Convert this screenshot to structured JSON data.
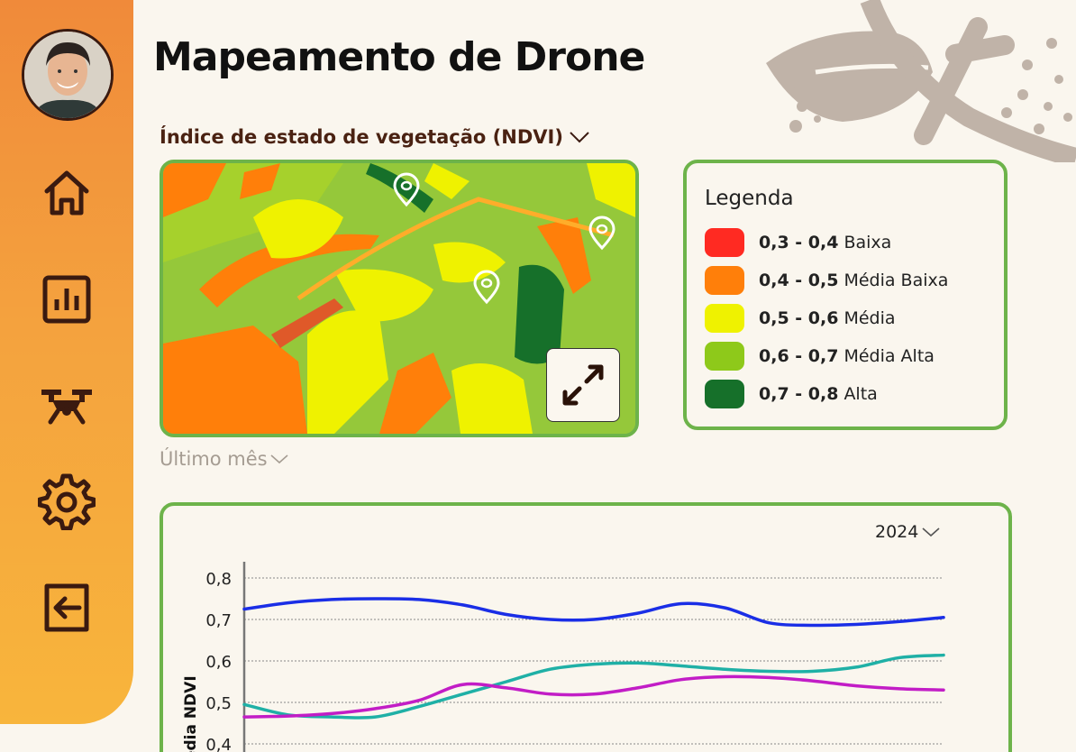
{
  "app": {
    "title": "Mapeamento de Drone"
  },
  "sidebar": {
    "items": [
      {
        "icon": "home-icon"
      },
      {
        "icon": "bar-chart-icon"
      },
      {
        "icon": "drone-icon"
      },
      {
        "icon": "gear-icon"
      },
      {
        "icon": "logout-icon"
      }
    ],
    "accent": "#f4a23e"
  },
  "map": {
    "index_label": "Índice de estado de vegetação (NDVI)",
    "period_label": "Último mês",
    "border_color": "#6db34a"
  },
  "legend": {
    "title": "Legenda",
    "items": [
      {
        "range": "0,3 - 0,4",
        "label": "Baixa",
        "color": "#ff2a22"
      },
      {
        "range": "0,4 - 0,5",
        "label": "Média Baixa",
        "color": "#ff7f0a"
      },
      {
        "range": "0,5 - 0,6",
        "label": "Média",
        "color": "#eff200"
      },
      {
        "range": "0,6 - 0,7",
        "label": "Média Alta",
        "color": "#8ec91a"
      },
      {
        "range": "0,7 - 0,8",
        "label": "Alta",
        "color": "#16702a"
      }
    ]
  },
  "chart": {
    "year_label": "2024"
  },
  "chart_data": {
    "type": "line",
    "ylabel": "Média NDVI",
    "yticks": [
      "0,8",
      "0,7",
      "0,6",
      "0,5",
      "0,4"
    ],
    "ylim": [
      0.4,
      0.8
    ],
    "grid": true,
    "x": [
      0,
      1,
      2,
      3,
      4,
      5,
      6,
      7,
      8,
      9,
      10,
      11,
      12,
      13,
      14,
      15,
      16
    ],
    "series": [
      {
        "color": "#1a2ee6",
        "values": [
          0.725,
          0.74,
          0.748,
          0.75,
          0.748,
          0.735,
          0.712,
          0.7,
          0.7,
          0.715,
          0.738,
          0.728,
          0.692,
          0.686,
          0.688,
          0.695,
          0.705
        ]
      },
      {
        "color": "#1fb0a6",
        "values": [
          0.495,
          0.47,
          0.465,
          0.465,
          0.49,
          0.52,
          0.55,
          0.58,
          0.592,
          0.595,
          0.588,
          0.58,
          0.575,
          0.575,
          0.585,
          0.608,
          0.614
        ]
      },
      {
        "color": "#c21dc6",
        "values": [
          0.465,
          0.467,
          0.473,
          0.485,
          0.505,
          0.543,
          0.535,
          0.52,
          0.52,
          0.535,
          0.555,
          0.562,
          0.56,
          0.552,
          0.54,
          0.533,
          0.53
        ]
      }
    ]
  }
}
